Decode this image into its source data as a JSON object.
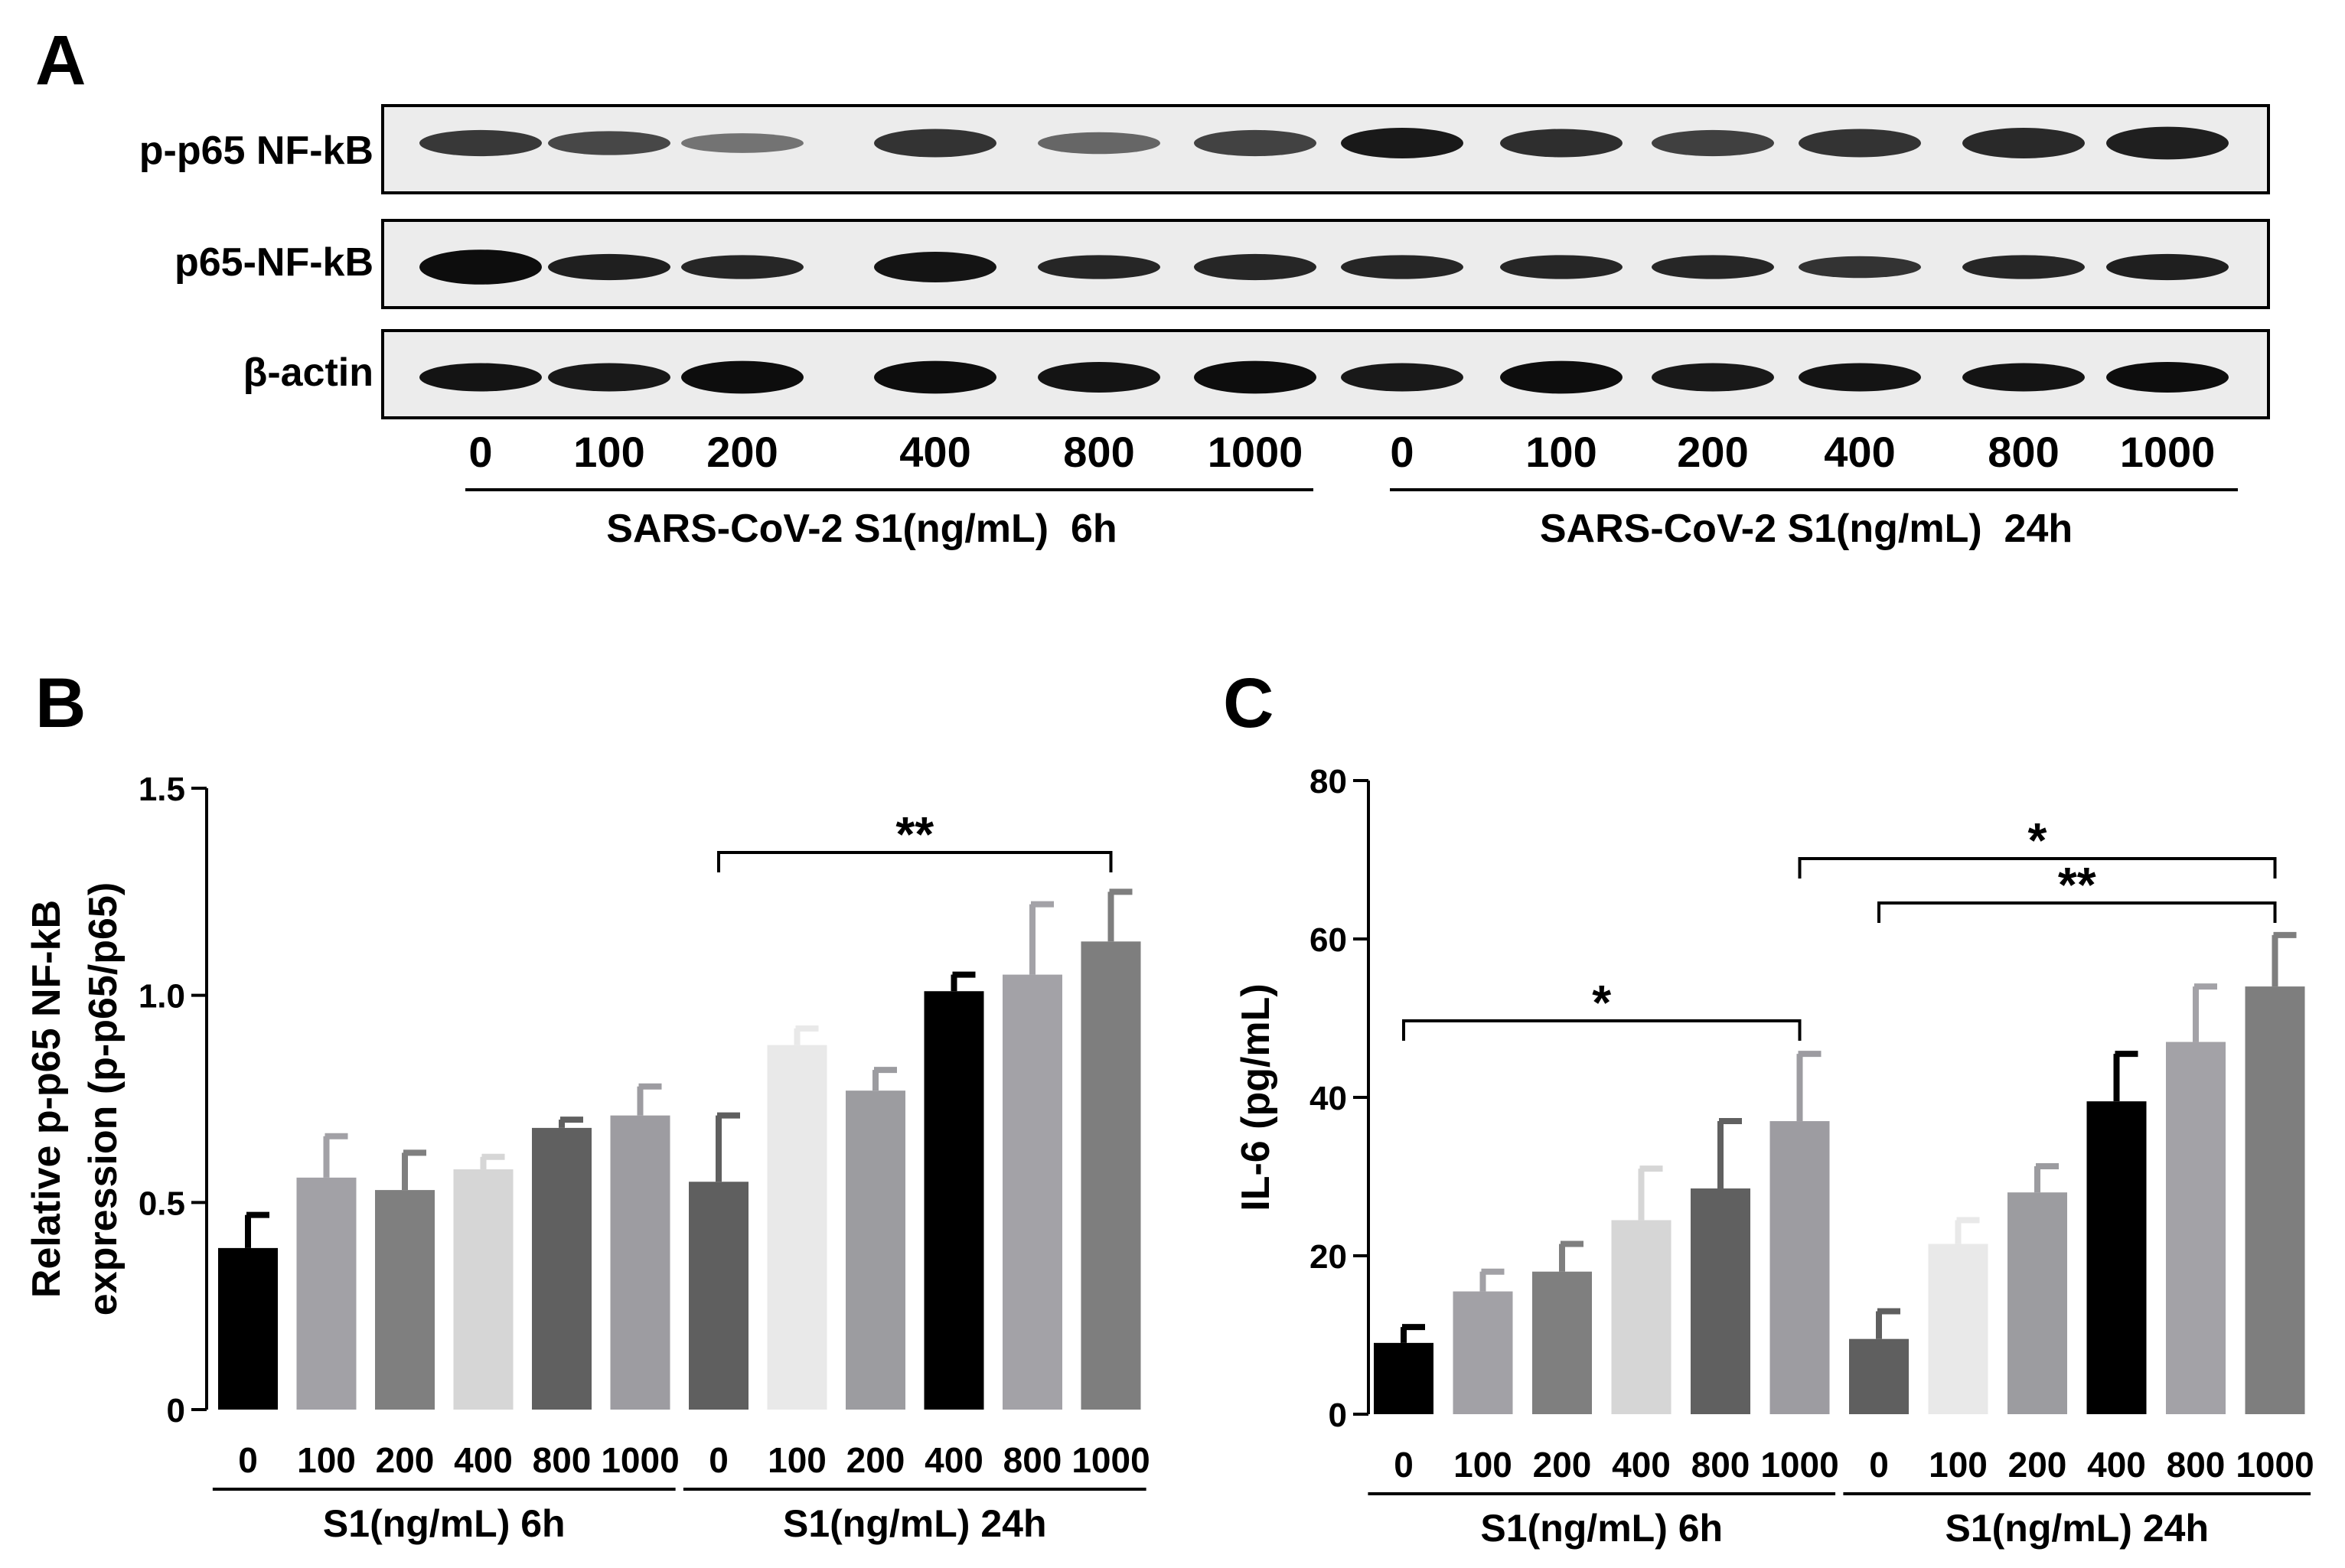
{
  "panels": {
    "a": {
      "letter": "A",
      "rows": [
        {
          "label": "p-p65 NF-kB",
          "lane_intensity": [
            0.78,
            0.72,
            0.55,
            0.8,
            0.6,
            0.74,
            0.9,
            0.82,
            0.75,
            0.8,
            0.84,
            0.88
          ],
          "band_height": [
            0.6,
            0.55,
            0.45,
            0.65,
            0.5,
            0.6,
            0.7,
            0.65,
            0.6,
            0.65,
            0.7,
            0.75
          ]
        },
        {
          "label": "p65-NF-kB",
          "lane_intensity": [
            0.95,
            0.88,
            0.85,
            0.92,
            0.85,
            0.85,
            0.85,
            0.85,
            0.85,
            0.8,
            0.85,
            0.88
          ],
          "band_height": [
            0.8,
            0.6,
            0.55,
            0.7,
            0.55,
            0.6,
            0.55,
            0.55,
            0.55,
            0.5,
            0.55,
            0.6
          ]
        },
        {
          "label": "β-actin",
          "lane_intensity": [
            0.92,
            0.9,
            0.95,
            0.95,
            0.92,
            0.95,
            0.9,
            0.95,
            0.9,
            0.92,
            0.92,
            0.95
          ],
          "band_height": [
            0.65,
            0.65,
            0.75,
            0.75,
            0.7,
            0.75,
            0.65,
            0.75,
            0.65,
            0.65,
            0.65,
            0.7
          ]
        }
      ],
      "lanes": [
        "0",
        "100",
        "200",
        "400",
        "800",
        "1000",
        "0",
        "100",
        "200",
        "400",
        "800",
        "1000"
      ],
      "group_labels": [
        "SARS-CoV-2 S1(ng/mL)  6h",
        "SARS-CoV-2 S1(ng/mL)  24h"
      ]
    },
    "b_letter": "B",
    "c_letter": "C"
  },
  "chart_data": [
    {
      "panel": "B",
      "type": "bar",
      "categories": [
        "0",
        "100",
        "200",
        "400",
        "800",
        "1000",
        "0",
        "100",
        "200",
        "400",
        "800",
        "1000"
      ],
      "groups": [
        "S1(ng/mL)  6h",
        "S1(ng/mL)  24h"
      ],
      "values": [
        0.39,
        0.56,
        0.53,
        0.58,
        0.68,
        0.71,
        0.55,
        0.88,
        0.77,
        1.01,
        1.05,
        1.13
      ],
      "errors": [
        0.08,
        0.1,
        0.09,
        0.03,
        0.02,
        0.07,
        0.16,
        0.04,
        0.05,
        0.04,
        0.17,
        0.12
      ],
      "colors": [
        "#000000",
        "#a2a1a6",
        "#7f7f7f",
        "#d6d6d6",
        "#606060",
        "#9d9ca1",
        "#5f5f5f",
        "#e9e9e9",
        "#9c9ca0",
        "#000000",
        "#a3a2a7",
        "#7e7e7e"
      ],
      "ylabel": [
        "Relative p-p65 NF-kB",
        "expression (p-p65/p65)"
      ],
      "ylim": [
        0,
        1.5
      ],
      "yticks": [
        "0",
        "0.5",
        "1.0",
        "1.5"
      ],
      "significance": [
        {
          "from": 6,
          "to": 11,
          "label": "**"
        }
      ]
    },
    {
      "panel": "C",
      "type": "bar",
      "categories": [
        "0",
        "100",
        "200",
        "400",
        "800",
        "1000",
        "0",
        "100",
        "200",
        "400",
        "800",
        "1000"
      ],
      "groups": [
        "S1(ng/mL)  6h",
        "S1(ng/mL)  24h"
      ],
      "values": [
        9,
        15.5,
        18,
        24.5,
        28.5,
        37,
        9.5,
        21.5,
        28,
        39.5,
        47,
        54
      ],
      "errors": [
        2,
        2.5,
        3.5,
        6.5,
        8.5,
        8.5,
        3.5,
        3,
        3.3,
        6,
        7,
        6.5
      ],
      "colors": [
        "#000000",
        "#a2a1a6",
        "#7f7f7f",
        "#d6d6d6",
        "#606060",
        "#9d9ca1",
        "#5f5f5f",
        "#e9e9e9",
        "#9c9ca0",
        "#000000",
        "#a3a2a7",
        "#7e7e7e"
      ],
      "ylabel": [
        "IL-6 (pg/mL)"
      ],
      "ylim": [
        0,
        80
      ],
      "yticks": [
        "0",
        "20",
        "40",
        "60",
        "80"
      ],
      "significance": [
        {
          "from": 0,
          "to": 5,
          "label": "*"
        },
        {
          "from": 5,
          "to": 11,
          "label": "*"
        },
        {
          "from": 6,
          "to": 11,
          "label": "**"
        }
      ]
    }
  ]
}
